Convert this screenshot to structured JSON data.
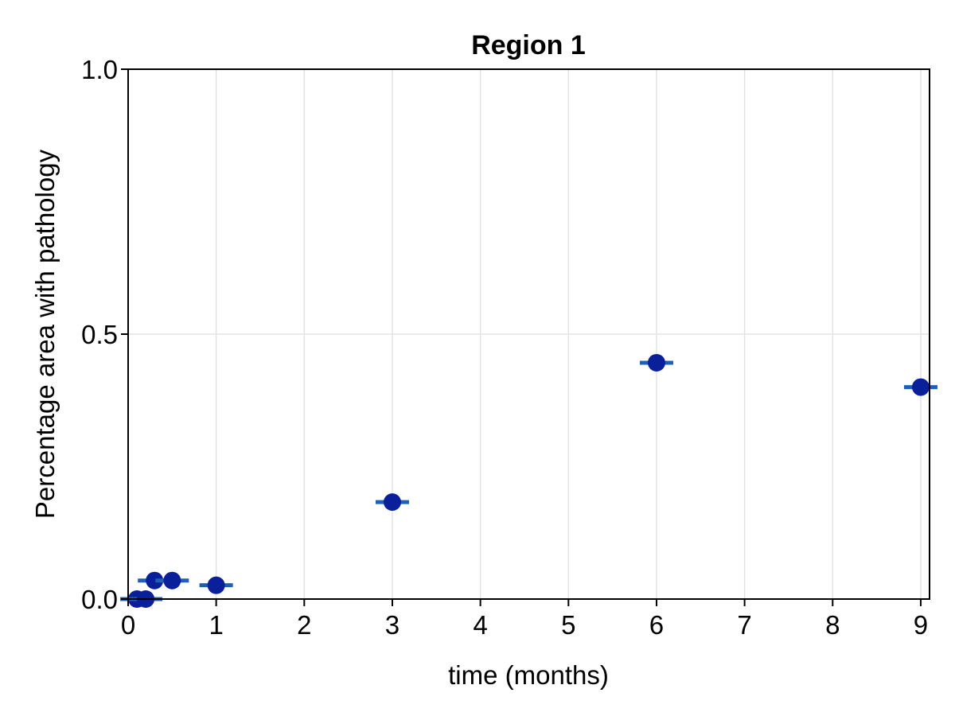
{
  "chart_data": {
    "type": "scatter",
    "title": "Region 1",
    "xlabel": "time (months)",
    "ylabel": "Percentage area with pathology",
    "xlim": [
      0,
      9.1
    ],
    "ylim": [
      0,
      1.0
    ],
    "xticks": [
      "0",
      "1",
      "2",
      "3",
      "4",
      "5",
      "6",
      "7",
      "8",
      "9"
    ],
    "yticks": [
      "0.0",
      "0.5",
      "1.0"
    ],
    "grid": true,
    "series": [
      {
        "color": "#0a1f9a",
        "bar_color": "#1f5fb5",
        "points": [
          {
            "x": 0.1,
            "y": 0.0
          },
          {
            "x": 0.2,
            "y": 0.0
          },
          {
            "x": 0.3,
            "y": 0.035
          },
          {
            "x": 0.5,
            "y": 0.035
          },
          {
            "x": 1.0,
            "y": 0.026
          },
          {
            "x": 3.0,
            "y": 0.183
          },
          {
            "x": 6.0,
            "y": 0.446
          },
          {
            "x": 9.0,
            "y": 0.4
          }
        ]
      }
    ]
  }
}
